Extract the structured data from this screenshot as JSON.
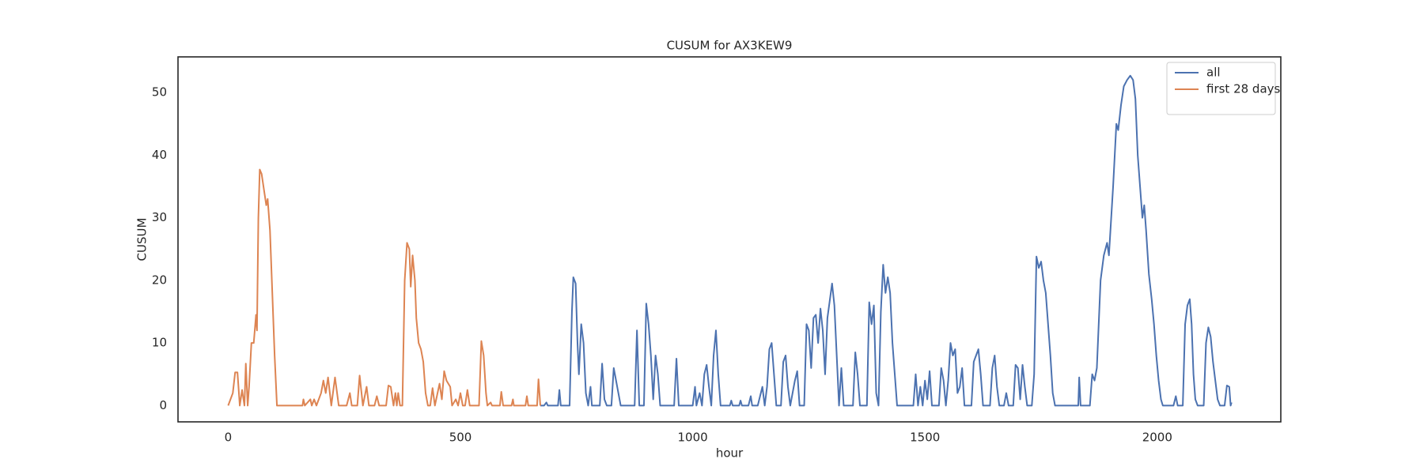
{
  "chart_data": {
    "type": "line",
    "title": "CUSUM for AX3KEW9",
    "xlabel": "hour",
    "ylabel": "CUSUM",
    "xlim": [
      -108,
      2266
    ],
    "ylim": [
      -2.6,
      55.7
    ],
    "xticks": [
      0,
      500,
      1000,
      1500,
      2000
    ],
    "yticks": [
      0,
      10,
      20,
      30,
      40,
      50
    ],
    "grid": false,
    "legend": "upper right",
    "series": [
      {
        "name": "all",
        "color": "#4c72b0",
        "x": [
          672,
          680,
          685,
          688,
          710,
          713,
          716,
          735,
          740,
          743,
          748,
          752,
          755,
          760,
          765,
          770,
          775,
          780,
          783,
          800,
          805,
          810,
          815,
          825,
          830,
          835,
          840,
          845,
          875,
          880,
          885,
          895,
          900,
          905,
          910,
          915,
          920,
          925,
          930,
          960,
          965,
          970,
          1000,
          1005,
          1008,
          1015,
          1020,
          1025,
          1030,
          1035,
          1040,
          1045,
          1050,
          1055,
          1060,
          1080,
          1083,
          1086,
          1100,
          1103,
          1106,
          1120,
          1125,
          1128,
          1140,
          1145,
          1150,
          1155,
          1160,
          1165,
          1170,
          1175,
          1180,
          1190,
          1195,
          1200,
          1205,
          1210,
          1220,
          1225,
          1230,
          1240,
          1245,
          1250,
          1255,
          1260,
          1265,
          1270,
          1275,
          1280,
          1285,
          1290,
          1300,
          1305,
          1310,
          1315,
          1320,
          1325,
          1345,
          1350,
          1355,
          1360,
          1375,
          1380,
          1385,
          1390,
          1395,
          1400,
          1405,
          1410,
          1415,
          1420,
          1425,
          1430,
          1435,
          1440,
          1475,
          1480,
          1485,
          1490,
          1495,
          1500,
          1505,
          1510,
          1515,
          1530,
          1535,
          1540,
          1545,
          1550,
          1555,
          1560,
          1565,
          1570,
          1575,
          1580,
          1585,
          1600,
          1605,
          1610,
          1615,
          1620,
          1625,
          1640,
          1645,
          1650,
          1655,
          1660,
          1670,
          1675,
          1680,
          1690,
          1695,
          1700,
          1705,
          1710,
          1715,
          1720,
          1730,
          1735,
          1740,
          1745,
          1750,
          1755,
          1760,
          1765,
          1770,
          1775,
          1780,
          1830,
          1832,
          1835,
          1855,
          1860,
          1865,
          1870,
          1878,
          1885,
          1892,
          1896,
          1905,
          1912,
          1916,
          1922,
          1928,
          1935,
          1942,
          1948,
          1953,
          1958,
          1963,
          1968,
          1972,
          1976,
          1982,
          1988,
          1993,
          1998,
          2003,
          2008,
          2012,
          2035,
          2040,
          2044,
          2055,
          2060,
          2065,
          2070,
          2074,
          2078,
          2082,
          2087,
          2100,
          2105,
          2110,
          2115,
          2120,
          2125,
          2130,
          2135,
          2145,
          2150,
          2155,
          2158,
          2160
        ],
        "values": [
          0,
          0,
          0.5,
          0,
          0,
          2.5,
          0,
          0,
          15,
          20.5,
          19.5,
          10,
          5,
          13,
          10,
          2,
          0,
          3,
          0,
          0,
          6.7,
          1,
          0,
          0,
          6,
          4,
          2,
          0,
          0,
          12,
          0,
          0,
          16.3,
          13,
          8,
          1,
          8,
          5,
          0,
          0,
          7.5,
          0,
          0,
          3,
          0,
          2,
          0,
          5,
          6.5,
          3,
          0,
          8,
          12,
          5,
          0,
          0,
          0.8,
          0,
          0,
          0.8,
          0,
          0,
          1.5,
          0,
          0,
          1.5,
          3,
          0,
          3,
          9,
          10,
          5,
          0,
          0,
          7,
          8,
          3,
          0,
          4,
          5.5,
          0,
          0,
          13,
          12,
          6,
          14,
          14.5,
          10,
          15.5,
          12,
          5,
          14,
          19.5,
          16,
          8,
          0,
          6,
          0,
          0,
          8.5,
          5,
          0,
          0,
          16.5,
          13,
          16,
          2,
          0,
          15,
          22.5,
          18,
          20.5,
          18,
          10,
          5,
          0,
          0,
          5,
          0,
          3,
          0,
          4,
          1,
          5.5,
          0,
          0,
          6,
          4,
          0,
          4,
          10,
          8,
          9,
          2,
          3,
          6,
          0,
          0,
          7,
          8,
          9,
          5,
          0,
          0,
          6,
          8,
          3,
          0,
          0,
          2,
          0,
          0,
          6.5,
          6,
          1,
          6.5,
          3,
          0,
          0,
          5,
          23.8,
          22,
          23,
          20,
          18,
          13,
          8,
          2,
          0,
          0,
          4.5,
          0,
          0,
          5,
          4,
          6,
          20,
          24,
          26,
          24,
          35,
          45,
          44,
          48,
          51,
          52,
          52.7,
          52,
          49,
          40,
          35,
          30,
          32,
          28,
          21,
          17,
          13,
          8,
          4,
          1,
          0,
          0,
          1.5,
          0,
          0,
          13,
          16,
          17,
          13,
          5,
          1,
          0,
          0,
          10,
          12.5,
          11,
          7,
          4,
          1,
          0,
          0,
          3.2,
          3,
          0,
          0.5
        ]
      },
      {
        "name": "first 28 days",
        "color": "#dd8452",
        "x": [
          0,
          10,
          15,
          20,
          25,
          30,
          35,
          38,
          42,
          45,
          50,
          55,
          60,
          62,
          65,
          68,
          72,
          78,
          82,
          85,
          90,
          95,
          100,
          105,
          160,
          162,
          165,
          177,
          180,
          185,
          190,
          200,
          205,
          210,
          215,
          222,
          230,
          238,
          255,
          262,
          266,
          278,
          283,
          290,
          298,
          303,
          315,
          320,
          325,
          340,
          345,
          350,
          356,
          360,
          363,
          366,
          370,
          375,
          380,
          385,
          390,
          393,
          397,
          402,
          405,
          410,
          415,
          420,
          425,
          430,
          435,
          440,
          445,
          455,
          460,
          465,
          470,
          478,
          482,
          490,
          495,
          500,
          505,
          510,
          515,
          520,
          540,
          545,
          550,
          555,
          558,
          565,
          568,
          585,
          588,
          592,
          610,
          613,
          615,
          640,
          643,
          646,
          665,
          668,
          672
        ],
        "values": [
          0,
          2,
          5.3,
          5.3,
          0,
          2.5,
          0,
          6.7,
          0,
          3,
          10,
          10,
          14.5,
          12,
          30,
          37.7,
          37,
          34,
          32,
          33,
          28,
          18,
          8,
          0,
          0,
          1,
          0,
          1,
          0,
          1,
          0,
          2,
          4,
          2,
          4.5,
          0,
          4.5,
          0,
          0,
          2,
          0,
          0,
          4.8,
          0,
          3,
          0,
          0,
          1.5,
          0,
          0,
          3.2,
          3,
          0,
          2,
          0,
          2,
          0,
          0,
          20,
          26,
          25,
          19,
          24,
          20,
          14,
          10,
          9,
          7,
          2,
          0,
          0,
          2.8,
          0,
          3.5,
          1,
          5.5,
          4,
          3,
          0,
          1,
          0,
          2,
          0,
          0,
          2.5,
          0,
          0,
          10.3,
          8,
          2,
          0,
          0.5,
          0,
          0,
          2.2,
          0,
          0,
          1,
          0,
          0,
          1.5,
          0,
          0,
          4.2,
          0
        ]
      }
    ]
  }
}
